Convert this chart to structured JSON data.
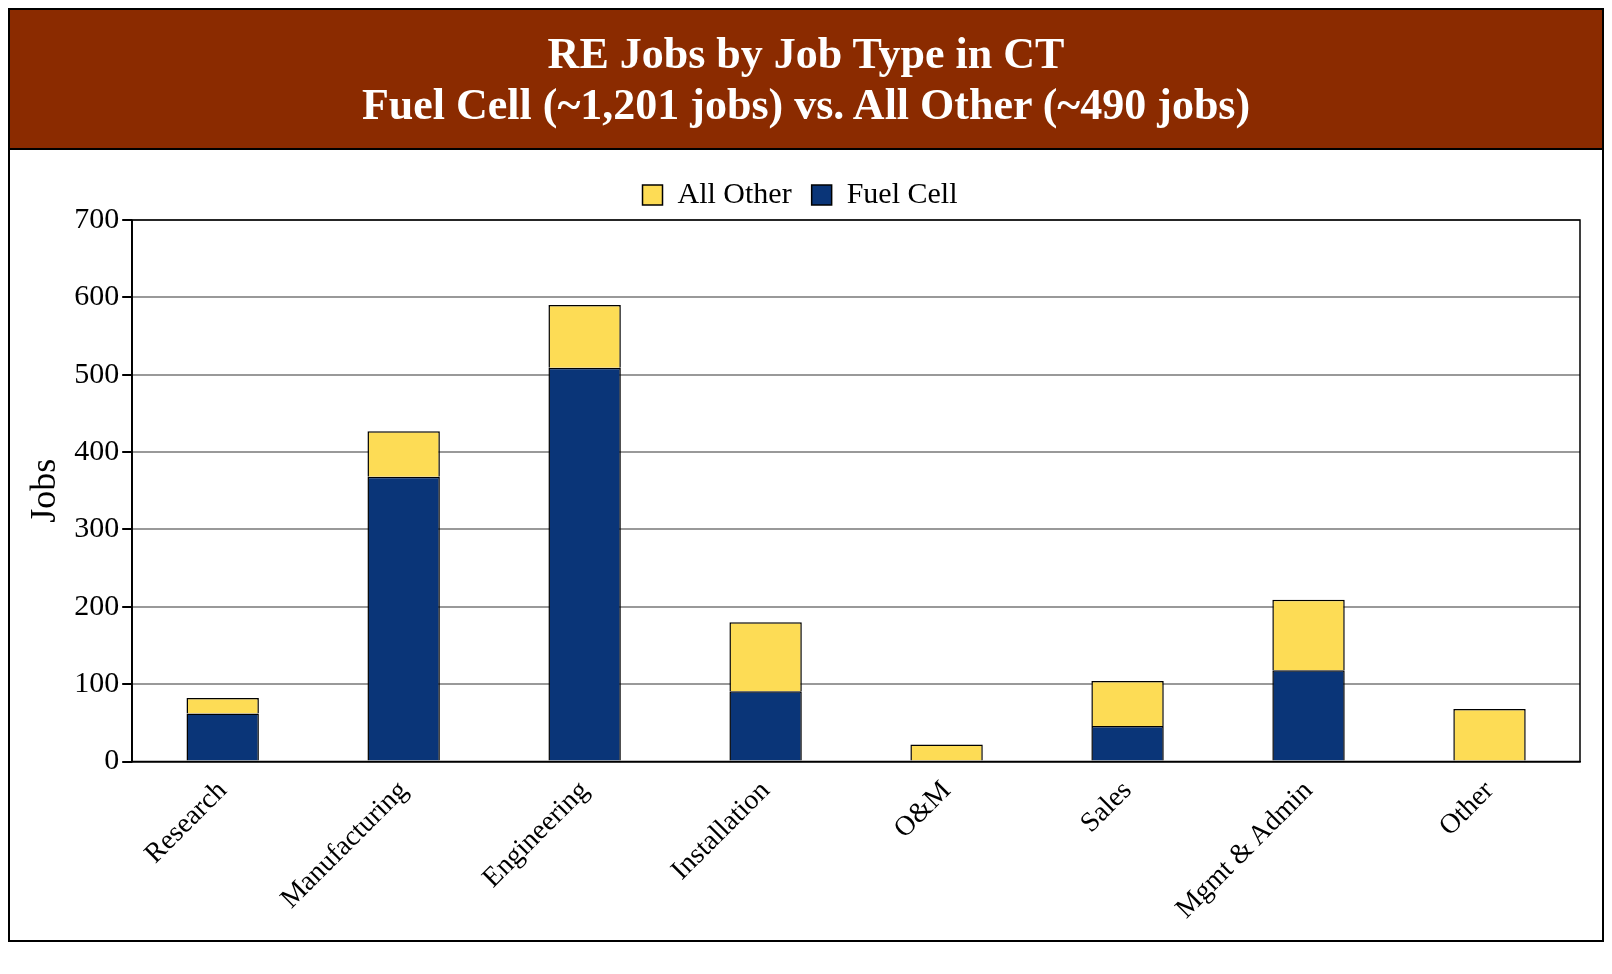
{
  "chart_data": {
    "type": "bar",
    "title": "RE Jobs by Job Type in CT",
    "subtitle": "Fuel Cell (~1,201 jobs) vs. All Other (~490 jobs)",
    "ylabel": "Jobs",
    "categories": [
      "Research",
      "Manufacturing",
      "Engineering",
      "Installation",
      "O&M",
      "Sales",
      "Mgmt & Admin",
      "Other"
    ],
    "stacked": true,
    "series": [
      {
        "name": "Fuel Cell",
        "color": "#0a3578",
        "values": [
          62,
          368,
          509,
          91,
          0,
          46,
          118,
          0
        ]
      },
      {
        "name": "All Other",
        "color": "#fddc55",
        "values": [
          20,
          59,
          81,
          89,
          22,
          58,
          91,
          68
        ]
      }
    ],
    "ylim": [
      0,
      700
    ],
    "yticks": [
      0,
      100,
      200,
      300,
      400,
      500,
      600,
      700
    ],
    "grid": "y",
    "legend": "top"
  }
}
